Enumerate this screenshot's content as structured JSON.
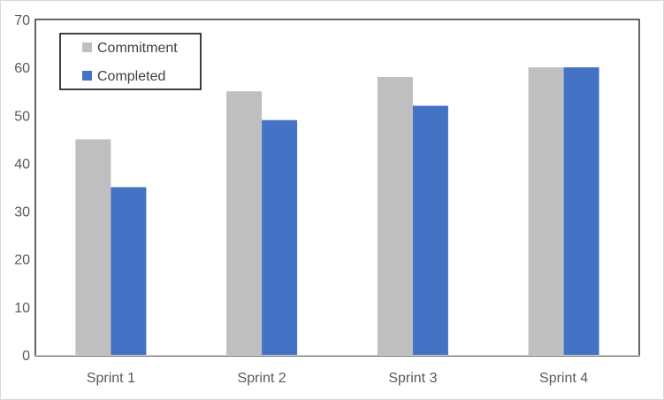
{
  "chart_data": {
    "type": "bar",
    "title": "",
    "xlabel": "",
    "ylabel": "",
    "categories": [
      "Sprint 1",
      "Sprint 2",
      "Sprint 3",
      "Sprint 4"
    ],
    "series": [
      {
        "name": "Commitment",
        "color": "#bfbfbf",
        "values": [
          45,
          55,
          58,
          60
        ]
      },
      {
        "name": "Completed",
        "color": "#4472c4",
        "values": [
          35,
          49,
          52,
          60
        ]
      }
    ],
    "ylim": [
      0,
      70
    ],
    "yticks": [
      0,
      10,
      20,
      30,
      40,
      50,
      60,
      70
    ],
    "grid": false,
    "legend_position": "top-left"
  }
}
